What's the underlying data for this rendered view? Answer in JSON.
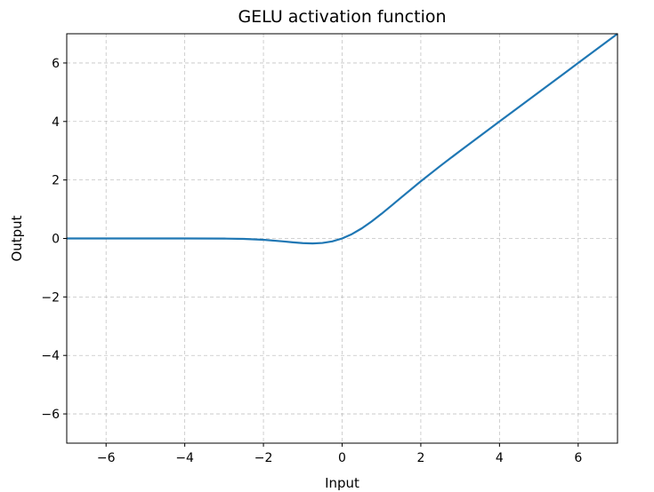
{
  "chart_data": {
    "type": "line",
    "title": "GELU activation function",
    "xlabel": "Input",
    "ylabel": "Output",
    "xlim": [
      -7,
      7
    ],
    "ylim": [
      -7,
      7
    ],
    "xticks": [
      -6,
      -4,
      -2,
      0,
      2,
      4,
      6
    ],
    "yticks": [
      -6,
      -4,
      -2,
      0,
      2,
      4,
      6
    ],
    "xtick_labels": [
      "−6",
      "−4",
      "−2",
      "0",
      "2",
      "4",
      "6"
    ],
    "ytick_labels": [
      "−6",
      "−4",
      "−2",
      "0",
      "2",
      "4",
      "6"
    ],
    "grid": true,
    "series": [
      {
        "color": "#1f77b4",
        "x": [
          -7,
          -6,
          -5,
          -4,
          -3,
          -2.5,
          -2,
          -1.5,
          -1.25,
          -1,
          -0.75,
          -0.5,
          -0.25,
          0,
          0.25,
          0.5,
          0.75,
          1,
          1.25,
          1.5,
          2,
          2.5,
          3,
          4,
          5,
          6,
          7
        ],
        "y": [
          0,
          0,
          0,
          -0.0001,
          -0.004,
          -0.0155,
          -0.0455,
          -0.1002,
          -0.132,
          -0.1587,
          -0.17,
          -0.1543,
          -0.1003,
          0,
          0.1497,
          0.3457,
          0.58,
          0.8413,
          1.118,
          1.3998,
          1.9545,
          2.4845,
          2.996,
          3.9999,
          5,
          6,
          7
        ]
      }
    ]
  }
}
